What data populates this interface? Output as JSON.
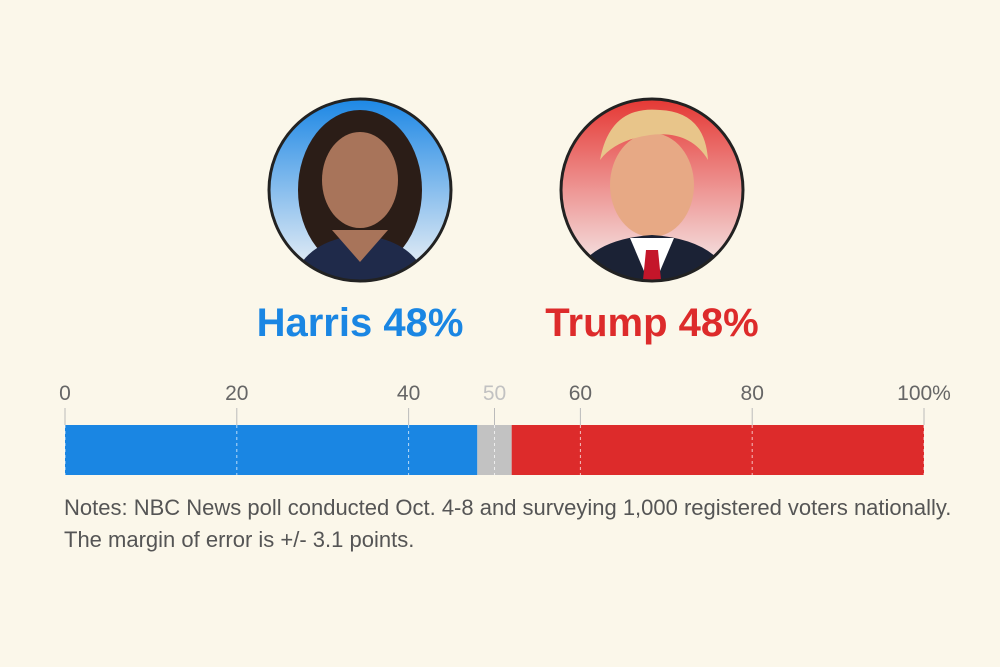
{
  "chart_data": {
    "type": "stacked-bar",
    "orientation": "horizontal",
    "series": [
      {
        "name": "Harris",
        "color": "#1a86e3",
        "values": [
          48
        ],
        "value_labels": [
          "48%"
        ]
      },
      {
        "color": "#c2c2c2",
        "values": [
          4
        ]
      },
      {
        "name": "Trump",
        "color": "#dd2b2b",
        "values": [
          48
        ],
        "value_labels": [
          "48%"
        ]
      }
    ],
    "xlim": [
      0,
      100
    ],
    "xticks": [
      0,
      20,
      40,
      50,
      60,
      80,
      {
        "value": 100,
        "label": "100%"
      }
    ],
    "notes": "Notes: NBC News poll conducted Oct. 4-8 and surveying 1,000 registered voters nationally. The margin of error is +/- 3.1 points."
  }
}
